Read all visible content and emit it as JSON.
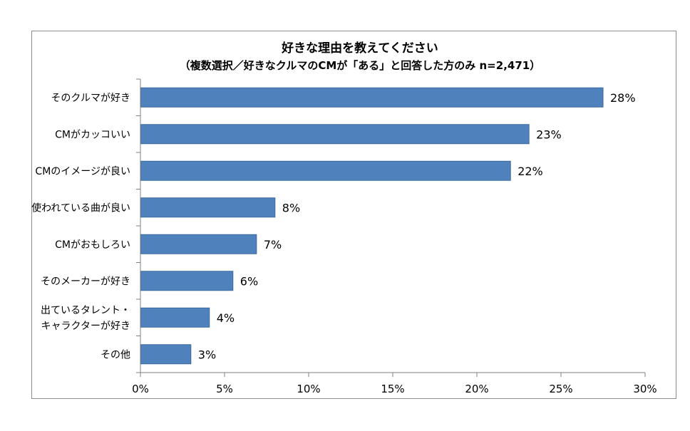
{
  "chart_data": {
    "type": "bar",
    "orientation": "horizontal",
    "title": "好きな理由を教えてください",
    "subtitle": "（複数選択／好きなクルマのCMが「ある」と回答した方のみ n=2,471）",
    "categories": [
      [
        "そのクルマが好き"
      ],
      [
        "CMがカッコいい"
      ],
      [
        "CMのイメージが良い"
      ],
      [
        "使われている曲が良い"
      ],
      [
        "CMがおもしろい"
      ],
      [
        "そのメーカーが好き"
      ],
      [
        "出ているタレント・",
        "キャラクターが好き"
      ],
      [
        "その他"
      ]
    ],
    "values": [
      27.5,
      23.1,
      22.0,
      8.0,
      6.9,
      5.5,
      4.1,
      3.0
    ],
    "value_labels": [
      "28%",
      "23%",
      "22%",
      "8%",
      "7%",
      "6%",
      "4%",
      "3%"
    ],
    "xlim": [
      0,
      30
    ],
    "xticks": [
      0,
      5,
      10,
      15,
      20,
      25,
      30
    ],
    "xtick_labels": [
      "0%",
      "5%",
      "10%",
      "15%",
      "20%",
      "25%",
      "30%"
    ],
    "bar_color": "#4f81bd",
    "bar_edge_color": "#3a6a9e",
    "axis_color": "#808080",
    "grid": false,
    "legend": "none"
  }
}
